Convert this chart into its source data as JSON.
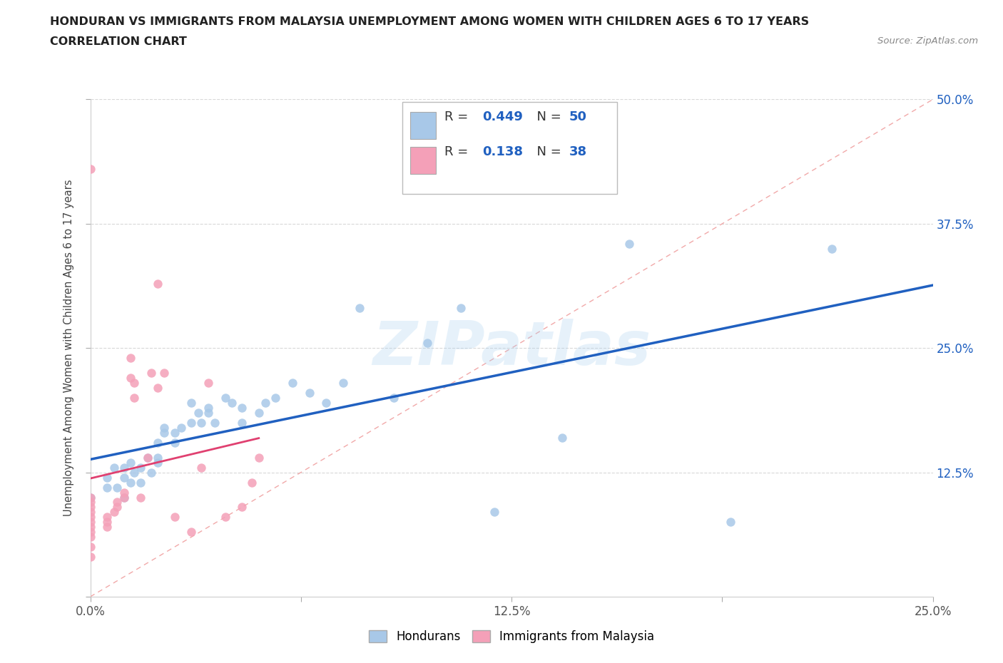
{
  "title_line1": "HONDURAN VS IMMIGRANTS FROM MALAYSIA UNEMPLOYMENT AMONG WOMEN WITH CHILDREN AGES 6 TO 17 YEARS",
  "title_line2": "CORRELATION CHART",
  "source": "Source: ZipAtlas.com",
  "ylabel": "Unemployment Among Women with Children Ages 6 to 17 years",
  "xlim": [
    0.0,
    0.25
  ],
  "ylim": [
    0.0,
    0.5
  ],
  "xtick_labels": [
    "0.0%",
    "",
    "12.5%",
    "",
    "25.0%"
  ],
  "xtick_vals": [
    0.0,
    0.0625,
    0.125,
    0.1875,
    0.25
  ],
  "ytick_labels": [
    "12.5%",
    "25.0%",
    "37.5%",
    "50.0%"
  ],
  "ytick_vals": [
    0.125,
    0.25,
    0.375,
    0.5
  ],
  "watermark": "ZIPatlas",
  "blue_color": "#a8c8e8",
  "pink_color": "#f4a0b8",
  "blue_line_color": "#2060c0",
  "pink_line_color": "#e04070",
  "diag_color": "#f0a0a0",
  "grid_color": "#d8d8d8",
  "honduran_x": [
    0.0,
    0.005,
    0.005,
    0.007,
    0.008,
    0.01,
    0.01,
    0.01,
    0.012,
    0.012,
    0.013,
    0.015,
    0.015,
    0.017,
    0.018,
    0.02,
    0.02,
    0.02,
    0.022,
    0.022,
    0.025,
    0.025,
    0.027,
    0.03,
    0.03,
    0.032,
    0.033,
    0.035,
    0.035,
    0.037,
    0.04,
    0.042,
    0.045,
    0.045,
    0.05,
    0.052,
    0.055,
    0.06,
    0.065,
    0.07,
    0.075,
    0.08,
    0.09,
    0.1,
    0.11,
    0.12,
    0.14,
    0.16,
    0.19,
    0.22
  ],
  "honduran_y": [
    0.1,
    0.11,
    0.12,
    0.13,
    0.11,
    0.1,
    0.13,
    0.12,
    0.115,
    0.135,
    0.125,
    0.13,
    0.115,
    0.14,
    0.125,
    0.135,
    0.155,
    0.14,
    0.17,
    0.165,
    0.155,
    0.165,
    0.17,
    0.175,
    0.195,
    0.185,
    0.175,
    0.185,
    0.19,
    0.175,
    0.2,
    0.195,
    0.175,
    0.19,
    0.185,
    0.195,
    0.2,
    0.215,
    0.205,
    0.195,
    0.215,
    0.29,
    0.2,
    0.255,
    0.29,
    0.085,
    0.16,
    0.355,
    0.075,
    0.35
  ],
  "malaysia_x": [
    0.0,
    0.0,
    0.0,
    0.0,
    0.0,
    0.0,
    0.0,
    0.0,
    0.0,
    0.0,
    0.0,
    0.0,
    0.005,
    0.005,
    0.005,
    0.007,
    0.008,
    0.008,
    0.01,
    0.01,
    0.012,
    0.012,
    0.013,
    0.013,
    0.015,
    0.017,
    0.018,
    0.02,
    0.02,
    0.022,
    0.025,
    0.03,
    0.033,
    0.035,
    0.04,
    0.045,
    0.048,
    0.05
  ],
  "malaysia_y": [
    0.04,
    0.05,
    0.06,
    0.065,
    0.07,
    0.075,
    0.08,
    0.085,
    0.09,
    0.095,
    0.1,
    0.43,
    0.07,
    0.075,
    0.08,
    0.085,
    0.09,
    0.095,
    0.1,
    0.105,
    0.22,
    0.24,
    0.2,
    0.215,
    0.1,
    0.14,
    0.225,
    0.21,
    0.315,
    0.225,
    0.08,
    0.065,
    0.13,
    0.215,
    0.08,
    0.09,
    0.115,
    0.14
  ]
}
